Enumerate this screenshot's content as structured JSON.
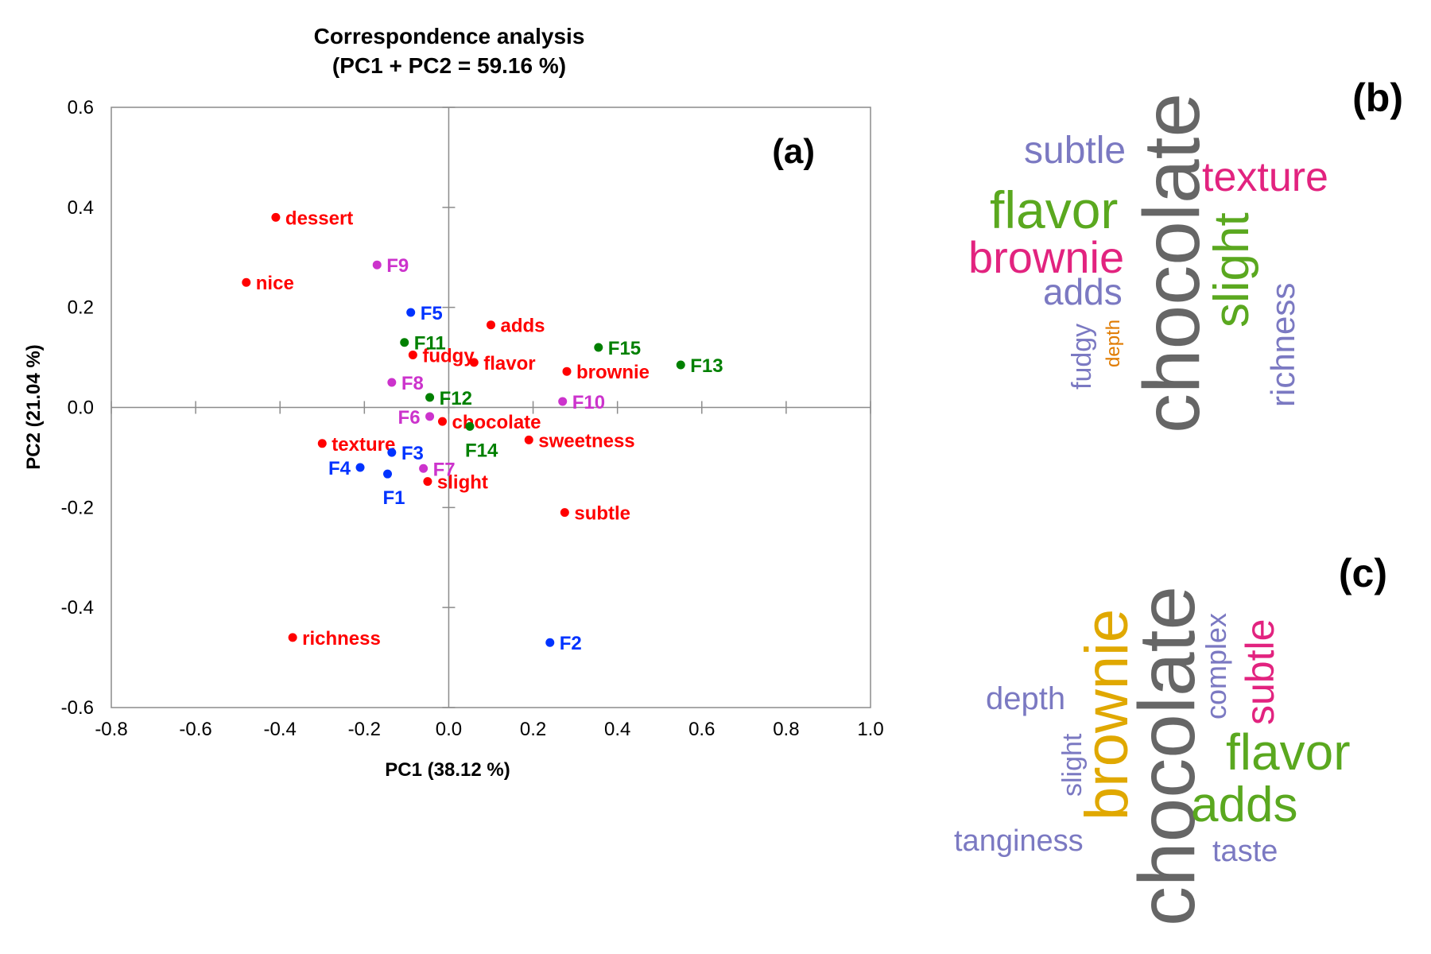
{
  "chart_data": [
    {
      "type": "scatter",
      "panel_label": "(a)",
      "title": "Correspondence analysis",
      "subtitle": "(PC1 + PC2 = 59.16 %)",
      "xlabel": "PC1 (38.12 %)",
      "ylabel": "PC2 (21.04 %)",
      "xlim": [
        -0.8,
        1.0
      ],
      "ylim": [
        -0.6,
        0.6
      ],
      "xticks": [
        -0.8,
        -0.6,
        -0.4,
        -0.2,
        0.0,
        0.2,
        0.4,
        0.6,
        0.8,
        1.0
      ],
      "xtick_labels": [
        "-0.8",
        "-0.6",
        "-0.4",
        "-0.2",
        "0.0",
        "0.2",
        "0.4",
        "0.6",
        "0.8",
        "1.0"
      ],
      "yticks": [
        0.6,
        0.4,
        0.2,
        0.0,
        -0.2,
        -0.4,
        -0.6
      ],
      "ytick_labels": [
        "0.6",
        "0.4",
        "0.2",
        "0.0",
        "-0.2",
        "-0.4",
        "-0.6"
      ],
      "grid": false,
      "series": [
        {
          "color": "#ff0000",
          "points": [
            {
              "label": "dessert",
              "x": -0.41,
              "y": 0.38,
              "anchor": "right"
            },
            {
              "label": "nice",
              "x": -0.48,
              "y": 0.25,
              "anchor": "right"
            },
            {
              "label": "adds",
              "x": 0.1,
              "y": 0.165,
              "anchor": "right"
            },
            {
              "label": "fudgy",
              "x": -0.085,
              "y": 0.105,
              "anchor": "right"
            },
            {
              "label": "flavor",
              "x": 0.06,
              "y": 0.09,
              "anchor": "right"
            },
            {
              "label": "brownie",
              "x": 0.28,
              "y": 0.072,
              "anchor": "right"
            },
            {
              "label": "chocolate",
              "x": -0.015,
              "y": -0.028,
              "anchor": "right"
            },
            {
              "label": "sweetness",
              "x": 0.19,
              "y": -0.065,
              "anchor": "right"
            },
            {
              "label": "texture",
              "x": -0.3,
              "y": -0.072,
              "anchor": "right"
            },
            {
              "label": "slight",
              "x": -0.05,
              "y": -0.148,
              "anchor": "right"
            },
            {
              "label": "subtle",
              "x": 0.275,
              "y": -0.21,
              "anchor": "right"
            },
            {
              "label": "richness",
              "x": -0.37,
              "y": -0.46,
              "anchor": "right"
            }
          ]
        },
        {
          "color": "#0033ff",
          "points": [
            {
              "label": "F5",
              "x": -0.09,
              "y": 0.19,
              "anchor": "right"
            },
            {
              "label": "F3",
              "x": -0.135,
              "y": -0.09,
              "anchor": "right"
            },
            {
              "label": "F4",
              "x": -0.21,
              "y": -0.12,
              "anchor": "left"
            },
            {
              "label": "F1",
              "x": -0.145,
              "y": -0.133,
              "anchor": "below"
            },
            {
              "label": "F2",
              "x": 0.24,
              "y": -0.47,
              "anchor": "right"
            }
          ]
        },
        {
          "color": "#cc33cc",
          "points": [
            {
              "label": "F9",
              "x": -0.17,
              "y": 0.285,
              "anchor": "right"
            },
            {
              "label": "F8",
              "x": -0.135,
              "y": 0.05,
              "anchor": "right"
            },
            {
              "label": "F6",
              "x": -0.045,
              "y": -0.018,
              "anchor": "left"
            },
            {
              "label": "F7",
              "x": -0.06,
              "y": -0.122,
              "anchor": "right"
            },
            {
              "label": "F10",
              "x": 0.27,
              "y": 0.012,
              "anchor": "right"
            }
          ]
        },
        {
          "color": "#008000",
          "points": [
            {
              "label": "F11",
              "x": -0.105,
              "y": 0.13,
              "anchor": "right"
            },
            {
              "label": "F12",
              "x": -0.045,
              "y": 0.02,
              "anchor": "right"
            },
            {
              "label": "F14",
              "x": 0.05,
              "y": -0.038,
              "anchor": "below"
            },
            {
              "label": "F15",
              "x": 0.355,
              "y": 0.12,
              "anchor": "right"
            },
            {
              "label": "F13",
              "x": 0.55,
              "y": 0.085,
              "anchor": "right"
            }
          ]
        }
      ]
    }
  ],
  "word_clouds": [
    {
      "panel_label": "(b)",
      "words": [
        {
          "text": "chocolate",
          "color": "#666666",
          "vertical": true
        },
        {
          "text": "subtle",
          "color": "#7b79c2",
          "vertical": false
        },
        {
          "text": "texture",
          "color": "#e2237f",
          "vertical": false
        },
        {
          "text": "flavor",
          "color": "#5aa81f",
          "vertical": false
        },
        {
          "text": "brownie",
          "color": "#e2237f",
          "vertical": false
        },
        {
          "text": "slight",
          "color": "#5aa81f",
          "vertical": true
        },
        {
          "text": "adds",
          "color": "#7b79c2",
          "vertical": false
        },
        {
          "text": "richness",
          "color": "#7b79c2",
          "vertical": true
        },
        {
          "text": "fudgy",
          "color": "#7b79c2",
          "vertical": true
        },
        {
          "text": "depth",
          "color": "#e07b00",
          "vertical": true
        }
      ]
    },
    {
      "panel_label": "(c)",
      "words": [
        {
          "text": "chocolate",
          "color": "#666666",
          "vertical": true
        },
        {
          "text": "brownie",
          "color": "#e0a800",
          "vertical": true
        },
        {
          "text": "complex",
          "color": "#7b79c2",
          "vertical": true
        },
        {
          "text": "subtle",
          "color": "#e2237f",
          "vertical": true
        },
        {
          "text": "depth",
          "color": "#7b79c2",
          "vertical": false
        },
        {
          "text": "flavor",
          "color": "#5aa81f",
          "vertical": false
        },
        {
          "text": "slight",
          "color": "#7b79c2",
          "vertical": true
        },
        {
          "text": "adds",
          "color": "#5aa81f",
          "vertical": false
        },
        {
          "text": "tanginess",
          "color": "#7b79c2",
          "vertical": false
        },
        {
          "text": "taste",
          "color": "#7b79c2",
          "vertical": false
        }
      ]
    }
  ]
}
